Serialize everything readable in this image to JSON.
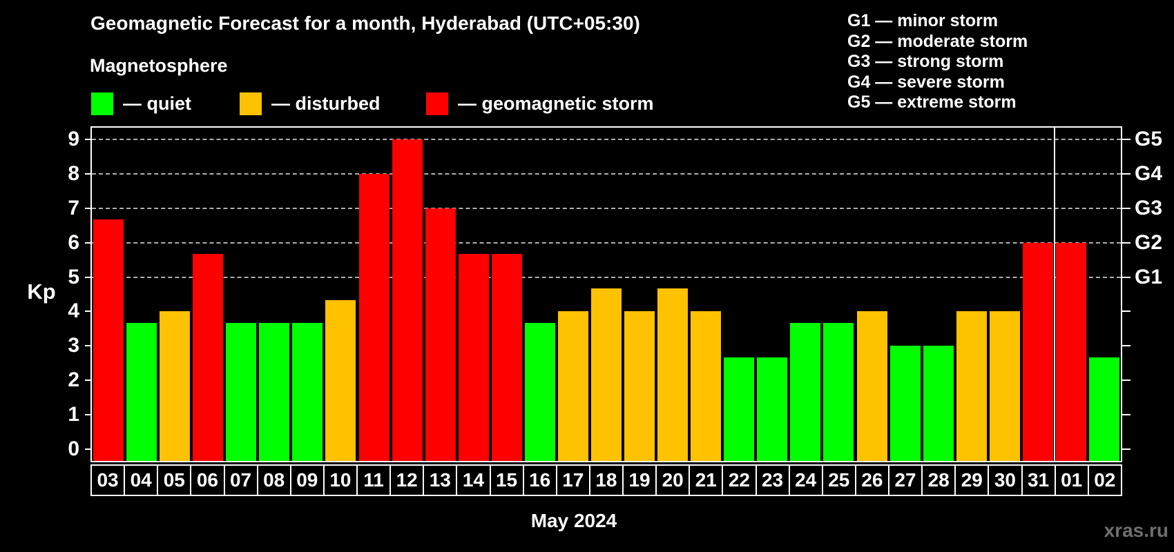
{
  "title": "Geomagnetic Forecast for a month, Hyderabad (UTC+05:30)",
  "subtitle": "Magnetosphere",
  "legend": {
    "items": [
      {
        "status": "quiet",
        "label": "— quiet",
        "color": "#00ff00"
      },
      {
        "status": "disturbed",
        "label": "— disturbed",
        "color": "#ffc200"
      },
      {
        "status": "storm",
        "label": "— geomagnetic storm",
        "color": "#ff0000"
      }
    ]
  },
  "storm_scale_legend": {
    "lines": [
      "G1 — minor storm",
      "G2 — moderate storm",
      "G3 — strong storm",
      "G4 — severe storm",
      "G5 — extreme storm"
    ]
  },
  "chart_data": {
    "type": "bar",
    "title": "Geomagnetic Forecast for a month, Hyderabad (UTC+05:30)",
    "ylabel": "Kp",
    "xlabel": "May 2024",
    "ylim": [
      0,
      9
    ],
    "y_ticks": [
      0,
      1,
      2,
      3,
      4,
      5,
      6,
      7,
      8,
      9
    ],
    "gridlines": [
      5,
      6,
      7,
      8,
      9
    ],
    "right_axis_labels": [
      {
        "value": 5,
        "label": "G1"
      },
      {
        "value": 6,
        "label": "G2"
      },
      {
        "value": 7,
        "label": "G3"
      },
      {
        "value": 8,
        "label": "G4"
      },
      {
        "value": 9,
        "label": "G5"
      }
    ],
    "categories": [
      "03",
      "04",
      "05",
      "06",
      "07",
      "08",
      "09",
      "10",
      "11",
      "12",
      "13",
      "14",
      "15",
      "16",
      "17",
      "18",
      "19",
      "20",
      "21",
      "22",
      "23",
      "24",
      "25",
      "26",
      "27",
      "28",
      "29",
      "30",
      "31",
      "01",
      "02"
    ],
    "values": [
      6.67,
      3.67,
      4,
      5.67,
      3.67,
      3.67,
      3.67,
      4.33,
      8,
      9,
      7,
      5.67,
      5.67,
      3.67,
      4,
      4.67,
      4,
      4.67,
      4,
      2.67,
      2.67,
      3.67,
      3.67,
      4,
      3,
      3,
      4,
      4,
      6,
      6,
      2.67
    ],
    "statuses": [
      "storm",
      "quiet",
      "disturbed",
      "storm",
      "quiet",
      "quiet",
      "quiet",
      "disturbed",
      "storm",
      "storm",
      "storm",
      "storm",
      "storm",
      "quiet",
      "disturbed",
      "disturbed",
      "disturbed",
      "disturbed",
      "disturbed",
      "quiet",
      "quiet",
      "quiet",
      "quiet",
      "disturbed",
      "quiet",
      "quiet",
      "disturbed",
      "disturbed",
      "storm",
      "storm",
      "quiet"
    ],
    "month_separator_index": 29,
    "legend_position": "top",
    "grid": true
  },
  "footer": {
    "xlabel": "May 2024",
    "watermark": "xras.ru"
  }
}
